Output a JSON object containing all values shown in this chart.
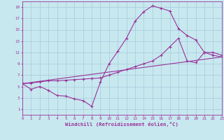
{
  "xlabel": "Windchill (Refroidissement éolien,°C)",
  "xlim": [
    0,
    23
  ],
  "ylim": [
    0,
    20
  ],
  "xticks": [
    0,
    1,
    2,
    3,
    4,
    5,
    6,
    7,
    8,
    9,
    10,
    11,
    12,
    13,
    14,
    15,
    16,
    17,
    18,
    19,
    20,
    21,
    22,
    23
  ],
  "yticks": [
    1,
    3,
    5,
    7,
    9,
    11,
    13,
    15,
    17,
    19
  ],
  "bg_color": "#c8e8f0",
  "line_color": "#993399",
  "grid_color": "#a8c8d8",
  "line1_x": [
    0,
    1,
    2,
    3,
    4,
    5,
    6,
    7,
    8,
    9,
    10,
    11,
    12,
    13,
    14,
    15,
    16,
    17,
    18,
    19,
    20,
    21,
    22,
    23
  ],
  "line1_y": [
    5.5,
    4.5,
    5.0,
    4.3,
    3.4,
    3.3,
    2.8,
    2.5,
    1.5,
    5.8,
    9.0,
    11.2,
    13.5,
    16.5,
    18.2,
    19.2,
    18.8,
    18.3,
    15.2,
    14.0,
    13.2,
    11.0,
    10.5,
    10.2
  ],
  "line2_x": [
    0,
    1,
    2,
    3,
    4,
    5,
    6,
    7,
    8,
    9,
    10,
    11,
    12,
    13,
    14,
    15,
    16,
    17,
    18,
    19,
    20,
    21,
    22,
    23
  ],
  "line2_y": [
    5.5,
    5.6,
    5.8,
    6.0,
    6.0,
    6.1,
    6.2,
    6.3,
    6.4,
    6.5,
    7.0,
    7.5,
    8.0,
    8.5,
    9.0,
    9.5,
    10.5,
    12.0,
    13.5,
    9.5,
    9.2,
    11.0,
    11.0,
    10.5
  ],
  "line3_x": [
    0,
    23
  ],
  "line3_y": [
    5.5,
    10.2
  ]
}
